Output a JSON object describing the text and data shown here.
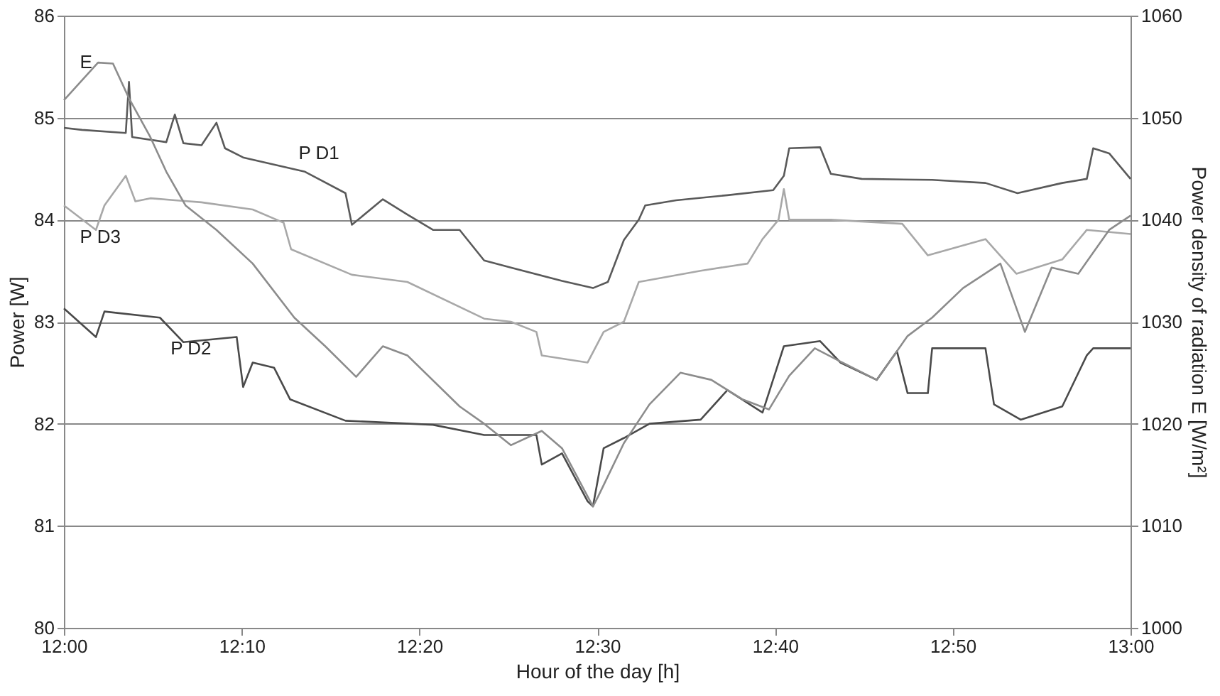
{
  "chart_data": {
    "type": "line",
    "xlabel": "Hour of the day [h]",
    "ylabel": "Power [W]",
    "y2label": "Power density of radiation E [W/m²]",
    "xlim": [
      12,
      13
    ],
    "xticks": [
      {
        "value": 12,
        "label": "12:00"
      },
      {
        "value": 12.1667,
        "label": "12:10"
      },
      {
        "value": 12.3333,
        "label": "12:20"
      },
      {
        "value": 12.5,
        "label": "12:30"
      },
      {
        "value": 12.6667,
        "label": "12:40"
      },
      {
        "value": 12.8333,
        "label": "12:50"
      },
      {
        "value": 13,
        "label": "13:00"
      }
    ],
    "ylim": [
      80,
      86
    ],
    "yticks": [
      80,
      81,
      82,
      83,
      84,
      85,
      86
    ],
    "y2lim": [
      1000,
      1060
    ],
    "y2ticks": [
      1000,
      1010,
      1020,
      1030,
      1040,
      1050,
      1060
    ],
    "grid": "y",
    "marker": "none",
    "line_style": "solid",
    "series": [
      {
        "name": "E",
        "color": "#8c8c8c",
        "axis": "y2",
        "x": [
          12.0,
          12.032,
          12.046,
          12.061,
          12.081,
          12.096,
          12.114,
          12.143,
          12.177,
          12.216,
          12.245,
          12.274,
          12.299,
          12.322,
          12.371,
          12.394,
          12.419,
          12.448,
          12.467,
          12.496,
          12.501,
          12.525,
          12.549,
          12.578,
          12.607,
          12.636,
          12.661,
          12.68,
          12.704,
          12.728,
          12.762,
          12.791,
          12.814,
          12.843,
          12.878,
          12.901,
          12.926,
          12.951,
          12.98,
          13.0
        ],
        "values": [
          1051.7,
          1055.4,
          1055.3,
          1051.9,
          1048.1,
          1044.7,
          1041.4,
          1039.0,
          1035.7,
          1030.4,
          1027.6,
          1024.6,
          1027.6,
          1026.7,
          1021.7,
          1020.0,
          1017.9,
          1019.3,
          1017.6,
          1011.9,
          1012.9,
          1018.1,
          1021.9,
          1025.0,
          1024.3,
          1022.4,
          1021.4,
          1024.7,
          1027.4,
          1026.1,
          1024.3,
          1028.6,
          1030.4,
          1033.3,
          1035.7,
          1029.0,
          1035.3,
          1034.7,
          1039.0,
          1040.4
        ]
      },
      {
        "name": "P D1",
        "color": "#5a5a5a",
        "x": [
          12.0,
          12.017,
          12.058,
          12.061,
          12.064,
          12.096,
          12.104,
          12.112,
          12.129,
          12.143,
          12.151,
          12.168,
          12.226,
          12.264,
          12.27,
          12.299,
          12.322,
          12.346,
          12.371,
          12.394,
          12.419,
          12.467,
          12.496,
          12.51,
          12.525,
          12.539,
          12.545,
          12.574,
          12.622,
          12.665,
          12.675,
          12.68,
          12.709,
          12.719,
          12.748,
          12.814,
          12.864,
          12.894,
          12.936,
          12.959,
          12.965,
          12.98,
          13.0
        ],
        "values": [
          84.9,
          84.88,
          84.85,
          85.35,
          84.81,
          84.76,
          85.03,
          84.75,
          84.73,
          84.95,
          84.7,
          84.61,
          84.47,
          84.26,
          83.95,
          84.2,
          84.05,
          83.9,
          83.9,
          83.6,
          83.53,
          83.4,
          83.33,
          83.39,
          83.8,
          84.0,
          84.14,
          84.19,
          84.24,
          84.29,
          84.43,
          84.7,
          84.71,
          84.45,
          84.4,
          84.39,
          84.36,
          84.26,
          84.36,
          84.4,
          84.7,
          84.65,
          84.4
        ]
      },
      {
        "name": "P D3",
        "color": "#a8a8a8",
        "x": [
          12.0,
          12.03,
          12.038,
          12.058,
          12.067,
          12.081,
          12.129,
          12.177,
          12.206,
          12.213,
          12.27,
          12.322,
          12.394,
          12.419,
          12.443,
          12.448,
          12.491,
          12.506,
          12.525,
          12.539,
          12.597,
          12.641,
          12.655,
          12.67,
          12.675,
          12.68,
          12.719,
          12.786,
          12.81,
          12.864,
          12.893,
          12.936,
          12.959,
          13.0
        ],
        "values": [
          84.14,
          83.9,
          84.14,
          84.43,
          84.18,
          84.21,
          84.17,
          84.1,
          83.97,
          83.71,
          83.46,
          83.39,
          83.03,
          83.0,
          82.9,
          82.67,
          82.6,
          82.9,
          83.0,
          83.39,
          83.5,
          83.57,
          83.81,
          84.0,
          84.3,
          84.0,
          84.0,
          83.96,
          83.65,
          83.81,
          83.47,
          83.61,
          83.9,
          83.86
        ]
      },
      {
        "name": "P D2",
        "color": "#4a4a4a",
        "x": [
          12.0,
          12.03,
          12.038,
          12.09,
          12.112,
          12.162,
          12.168,
          12.177,
          12.197,
          12.212,
          12.264,
          12.346,
          12.394,
          12.443,
          12.448,
          12.467,
          12.491,
          12.496,
          12.506,
          12.525,
          12.549,
          12.597,
          12.622,
          12.655,
          12.675,
          12.709,
          12.728,
          12.762,
          12.781,
          12.791,
          12.81,
          12.814,
          12.864,
          12.872,
          12.897,
          12.936,
          12.959,
          12.965,
          13.0
        ],
        "values": [
          83.13,
          82.85,
          83.1,
          83.04,
          82.8,
          82.85,
          82.36,
          82.6,
          82.55,
          82.24,
          82.03,
          81.99,
          81.89,
          81.89,
          81.6,
          81.71,
          81.24,
          81.19,
          81.76,
          81.86,
          82.0,
          82.04,
          82.33,
          82.11,
          82.76,
          82.81,
          82.6,
          82.43,
          82.71,
          82.3,
          82.3,
          82.74,
          82.74,
          82.19,
          82.04,
          82.17,
          82.67,
          82.74,
          82.74
        ]
      }
    ]
  }
}
